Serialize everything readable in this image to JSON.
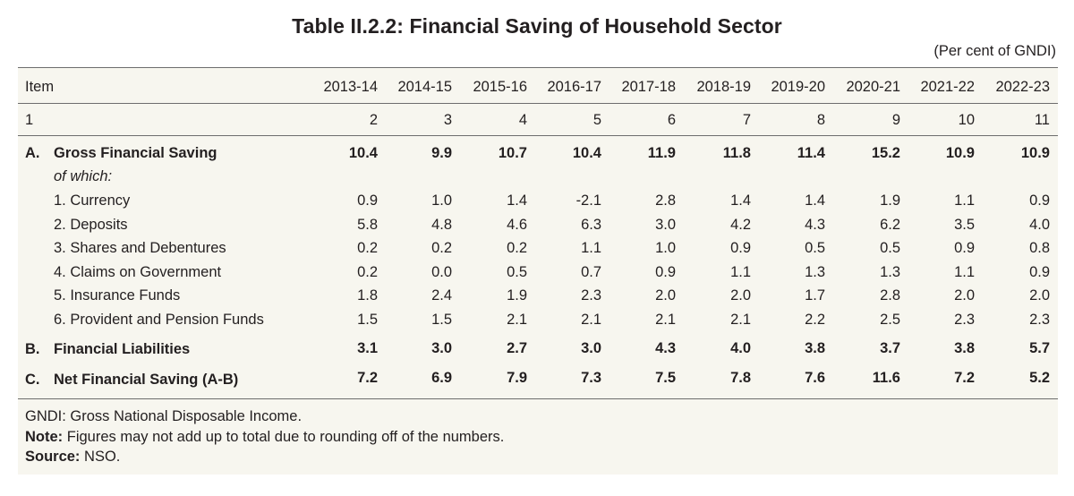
{
  "title": "Table II.2.2: Financial Saving of Household Sector",
  "unit_note": "(Per cent of GNDI)",
  "header": {
    "item_label": "Item",
    "years": [
      "2013-14",
      "2014-15",
      "2015-16",
      "2016-17",
      "2017-18",
      "2018-19",
      "2019-20",
      "2020-21",
      "2021-22",
      "2022-23"
    ]
  },
  "col_numbers": {
    "first": "1",
    "values": [
      "2",
      "3",
      "4",
      "5",
      "6",
      "7",
      "8",
      "9",
      "10",
      "11"
    ]
  },
  "section_a": {
    "letter": "A.",
    "label": "Gross Financial Saving",
    "values": [
      "10.4",
      "9.9",
      "10.7",
      "10.4",
      "11.9",
      "11.8",
      "11.4",
      "15.2",
      "10.9",
      "10.9"
    ],
    "of_which": "of which:",
    "items": [
      {
        "label": "1. Currency",
        "values": [
          "0.9",
          "1.0",
          "1.4",
          "-2.1",
          "2.8",
          "1.4",
          "1.4",
          "1.9",
          "1.1",
          "0.9"
        ]
      },
      {
        "label": "2. Deposits",
        "values": [
          "5.8",
          "4.8",
          "4.6",
          "6.3",
          "3.0",
          "4.2",
          "4.3",
          "6.2",
          "3.5",
          "4.0"
        ]
      },
      {
        "label": "3. Shares and Debentures",
        "values": [
          "0.2",
          "0.2",
          "0.2",
          "1.1",
          "1.0",
          "0.9",
          "0.5",
          "0.5",
          "0.9",
          "0.8"
        ]
      },
      {
        "label": "4. Claims on Government",
        "values": [
          "0.2",
          "0.0",
          "0.5",
          "0.7",
          "0.9",
          "1.1",
          "1.3",
          "1.3",
          "1.1",
          "0.9"
        ]
      },
      {
        "label": "5. Insurance Funds",
        "values": [
          "1.8",
          "2.4",
          "1.9",
          "2.3",
          "2.0",
          "2.0",
          "1.7",
          "2.8",
          "2.0",
          "2.0"
        ]
      },
      {
        "label": "6. Provident and Pension Funds",
        "values": [
          "1.5",
          "1.5",
          "2.1",
          "2.1",
          "2.1",
          "2.1",
          "2.2",
          "2.5",
          "2.3",
          "2.3"
        ]
      }
    ]
  },
  "section_b": {
    "letter": "B.",
    "label": "Financial Liabilities",
    "values": [
      "3.1",
      "3.0",
      "2.7",
      "3.0",
      "4.3",
      "4.0",
      "3.8",
      "3.7",
      "3.8",
      "5.7"
    ]
  },
  "section_c": {
    "letter": "C.",
    "label": "Net Financial Saving (A-B)",
    "values": [
      "7.2",
      "6.9",
      "7.9",
      "7.3",
      "7.5",
      "7.8",
      "7.6",
      "11.6",
      "7.2",
      "5.2"
    ]
  },
  "footnotes": {
    "gndi": "GNDI: Gross National Disposable Income.",
    "note_label": "Note:",
    "note_text": " Figures may not add up to total due to rounding off of the numbers.",
    "source_label": "Source:",
    "source_text": " NSO."
  }
}
